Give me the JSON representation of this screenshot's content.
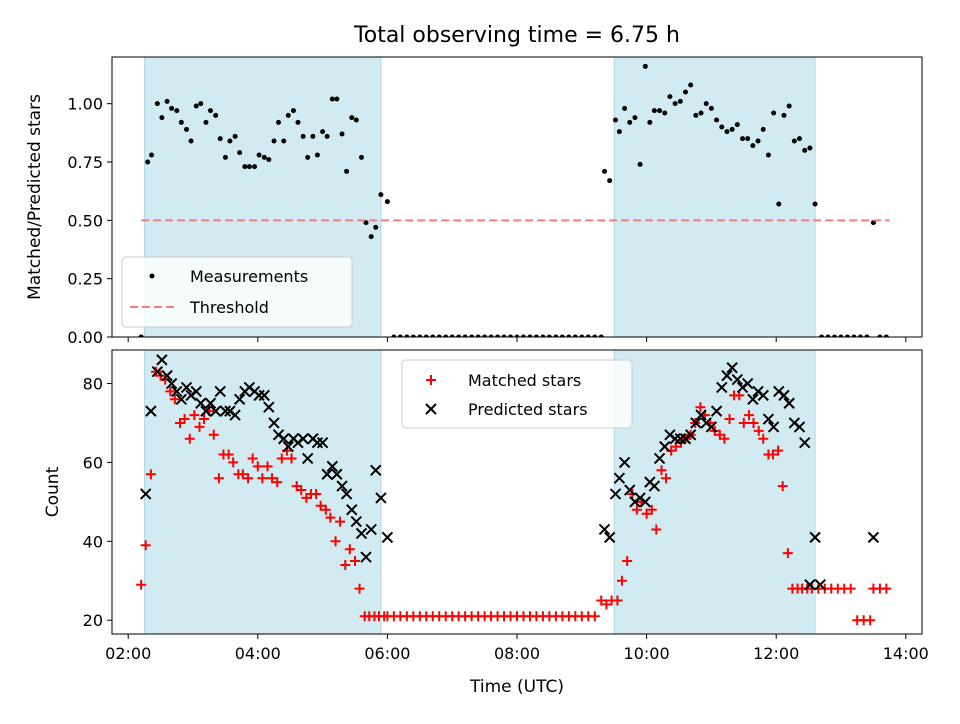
{
  "chart_data": {
    "title": "Total observing time = 6.75 h",
    "x_tick_labels": [
      "02:00",
      "04:00",
      "06:00",
      "08:00",
      "10:00",
      "12:00",
      "14:00"
    ],
    "x_tick_values_h": [
      2,
      4,
      6,
      8,
      10,
      12,
      14
    ],
    "xlabel": "Time (UTC)",
    "xlim_h": [
      1.75,
      14.25
    ],
    "shaded_windows_h": [
      [
        2.25,
        5.9
      ],
      [
        9.5,
        12.6
      ]
    ],
    "shade_color": "#add8e6",
    "panels": [
      {
        "type": "scatter",
        "ylabel": "Matched/Predicted stars",
        "ylim": [
          0,
          1.2
        ],
        "y_ticks": [
          0,
          0.25,
          0.5,
          0.75,
          1.0
        ],
        "y_tick_labels": [
          "0.00",
          "0.25",
          "0.50",
          "0.75",
          "1.00"
        ],
        "legend_position": "lower-left",
        "series": [
          {
            "name": "Measurements",
            "type": "scatter",
            "color": "#000000",
            "x_h": [
              2.3,
              2.36,
              2.45,
              2.52,
              2.6,
              2.67,
              2.75,
              2.82,
              2.9,
              2.97,
              3.05,
              3.12,
              3.2,
              3.27,
              3.35,
              3.42,
              3.5,
              3.57,
              3.65,
              3.72,
              3.8,
              3.87,
              3.95,
              4.02,
              4.1,
              4.17,
              4.25,
              4.32,
              4.4,
              4.47,
              4.55,
              4.62,
              4.7,
              4.77,
              4.85,
              4.92,
              5.0,
              5.07,
              5.15,
              5.22,
              5.3,
              5.37,
              5.45,
              5.52,
              5.6,
              5.67,
              5.75,
              5.82,
              5.9,
              6.0,
              9.35,
              9.43,
              9.52,
              9.58,
              9.66,
              9.74,
              9.82,
              9.9,
              9.98,
              10.05,
              10.12,
              10.2,
              10.28,
              10.36,
              10.44,
              10.52,
              10.6,
              10.68,
              10.76,
              10.84,
              10.92,
              11.0,
              11.08,
              11.16,
              11.24,
              11.32,
              11.4,
              11.48,
              11.56,
              11.64,
              11.72,
              11.8,
              11.88,
              11.96,
              12.04,
              12.12,
              12.2,
              12.28,
              12.36,
              12.44,
              12.52,
              12.6,
              13.5
            ],
            "y": [
              0.75,
              0.78,
              1.0,
              0.94,
              1.01,
              0.98,
              0.97,
              0.92,
              0.89,
              0.84,
              0.99,
              1.0,
              0.92,
              0.97,
              0.95,
              0.85,
              0.77,
              0.84,
              0.86,
              0.79,
              0.73,
              0.73,
              0.73,
              0.78,
              0.77,
              0.76,
              0.84,
              0.92,
              0.84,
              0.95,
              0.97,
              0.92,
              0.86,
              0.77,
              0.86,
              0.78,
              0.88,
              0.86,
              1.02,
              1.02,
              0.87,
              0.71,
              0.94,
              0.93,
              0.77,
              0.49,
              0.43,
              0.47,
              0.61,
              0.58,
              0.71,
              0.67,
              0.93,
              0.88,
              0.98,
              0.92,
              0.94,
              0.74,
              1.16,
              0.92,
              0.97,
              0.97,
              0.96,
              1.03,
              1.0,
              1.01,
              1.05,
              1.08,
              0.95,
              0.96,
              1.0,
              0.98,
              0.93,
              0.9,
              0.88,
              0.89,
              0.91,
              0.85,
              0.85,
              0.82,
              0.84,
              0.89,
              0.78,
              0.96,
              0.57,
              0.95,
              0.99,
              0.84,
              0.85,
              0.8,
              0.81,
              0.57,
              0.49
            ]
          },
          {
            "name": "Measurements",
            "type": "scatter",
            "color": "#000000",
            "x_h": [
              2.2,
              6.1,
              6.2,
              6.3,
              6.4,
              6.5,
              6.6,
              6.7,
              6.8,
              6.9,
              7.0,
              7.1,
              7.2,
              7.3,
              7.4,
              7.5,
              7.6,
              7.7,
              7.8,
              7.9,
              8.0,
              8.1,
              8.2,
              8.3,
              8.4,
              8.5,
              8.6,
              8.7,
              8.8,
              8.9,
              9.0,
              9.1,
              9.2,
              9.3,
              12.7,
              12.8,
              12.9,
              13.0,
              13.1,
              13.2,
              13.3,
              13.4,
              13.6,
              13.7
            ],
            "y": [
              0,
              0,
              0,
              0,
              0,
              0,
              0,
              0,
              0,
              0,
              0,
              0,
              0,
              0,
              0,
              0,
              0,
              0,
              0,
              0,
              0,
              0,
              0,
              0,
              0,
              0,
              0,
              0,
              0,
              0,
              0,
              0,
              0,
              0,
              0,
              0,
              0,
              0,
              0,
              0,
              0,
              0,
              0,
              0
            ]
          },
          {
            "name": "Threshold",
            "type": "line",
            "style": "dashed",
            "color": "#f08080",
            "x_h": [
              2.2,
              13.75
            ],
            "y": [
              0.5,
              0.5
            ]
          }
        ]
      },
      {
        "type": "scatter",
        "ylabel": "Count",
        "ylim": [
          16.5,
          88.5
        ],
        "y_ticks": [
          20,
          40,
          60,
          80
        ],
        "y_tick_labels": [
          "20",
          "40",
          "60",
          "80"
        ],
        "legend_position": "top-center",
        "series": [
          {
            "name": "Matched stars",
            "marker": "+",
            "color": "#ff0000",
            "x_h": [
              2.2,
              2.27,
              2.35,
              2.43,
              2.5,
              2.57,
              2.65,
              2.72,
              2.8,
              2.87,
              2.95,
              3.02,
              3.1,
              3.17,
              3.25,
              3.32,
              3.4,
              3.47,
              3.55,
              3.62,
              3.7,
              3.77,
              3.85,
              3.92,
              4.0,
              4.07,
              4.15,
              4.22,
              4.3,
              4.37,
              4.45,
              4.52,
              4.6,
              4.67,
              4.75,
              4.82,
              4.9,
              4.97,
              5.05,
              5.12,
              5.2,
              5.27,
              5.35,
              5.42,
              5.5,
              5.57,
              5.65,
              5.72,
              5.8,
              5.87,
              5.95,
              6.0,
              6.1,
              6.2,
              6.3,
              6.4,
              6.5,
              6.6,
              6.7,
              6.8,
              6.9,
              7.0,
              7.1,
              7.2,
              7.3,
              7.4,
              7.5,
              7.6,
              7.7,
              7.8,
              7.9,
              8.0,
              8.1,
              8.2,
              8.3,
              8.4,
              8.5,
              8.6,
              8.7,
              8.8,
              8.9,
              9.0,
              9.1,
              9.2,
              9.3,
              9.38,
              9.46,
              9.55,
              9.62,
              9.7,
              9.78,
              9.85,
              9.92,
              10.0,
              10.08,
              10.15,
              10.23,
              10.3,
              10.38,
              10.45,
              10.53,
              10.6,
              10.68,
              10.75,
              10.83,
              10.9,
              10.98,
              11.05,
              11.13,
              11.2,
              11.28,
              11.35,
              11.43,
              11.5,
              11.58,
              11.65,
              11.73,
              11.8,
              11.88,
              11.95,
              12.03,
              12.1,
              12.18,
              12.25,
              12.33,
              12.4,
              12.48,
              12.55,
              12.65,
              12.75,
              12.85,
              12.95,
              13.05,
              13.15,
              13.25,
              13.35,
              13.45,
              13.5,
              13.6,
              13.7
            ],
            "y": [
              29,
              39,
              57,
              83,
              82,
              81,
              78,
              76,
              70,
              71,
              66,
              72,
              69,
              71,
              73,
              67,
              56,
              62,
              62,
              60,
              57,
              57,
              56,
              61,
              59,
              56,
              59,
              56,
              55,
              61,
              63,
              61,
              54,
              53,
              51,
              52,
              52,
              49,
              48,
              46,
              40,
              45,
              34,
              38,
              35,
              28,
              21,
              21,
              21,
              21,
              21,
              21,
              21,
              21,
              21,
              21,
              21,
              21,
              21,
              21,
              21,
              21,
              21,
              21,
              21,
              21,
              21,
              21,
              21,
              21,
              21,
              21,
              21,
              21,
              21,
              21,
              21,
              21,
              21,
              21,
              21,
              21,
              21,
              21,
              25,
              24,
              25,
              25,
              30,
              35,
              52,
              48,
              50,
              47,
              48,
              43,
              58,
              56,
              63,
              64,
              65,
              66,
              67,
              70,
              74,
              72,
              70,
              68,
              67,
              66,
              71,
              77,
              77,
              70,
              72,
              70,
              68,
              66,
              62,
              62,
              63,
              54,
              37,
              28,
              28,
              28,
              28,
              28,
              28,
              28,
              28,
              28,
              28,
              28,
              20,
              20,
              20,
              28,
              28,
              28
            ],
            "note": ""
          },
          {
            "name": "Predicted stars",
            "marker": "x",
            "color": "#000000",
            "x_h": [
              2.27,
              2.35,
              2.45,
              2.52,
              2.6,
              2.67,
              2.75,
              2.82,
              2.9,
              2.97,
              3.05,
              3.12,
              3.2,
              3.27,
              3.35,
              3.42,
              3.5,
              3.57,
              3.65,
              3.72,
              3.8,
              3.87,
              3.95,
              4.02,
              4.1,
              4.17,
              4.25,
              4.32,
              4.4,
              4.47,
              4.55,
              4.62,
              4.7,
              4.77,
              4.85,
              4.92,
              5.0,
              5.07,
              5.15,
              5.22,
              5.3,
              5.37,
              5.45,
              5.52,
              5.6,
              5.67,
              5.75,
              5.82,
              5.9,
              6.0,
              9.35,
              9.43,
              9.52,
              9.58,
              9.66,
              9.74,
              9.82,
              9.9,
              9.98,
              10.05,
              10.12,
              10.2,
              10.28,
              10.36,
              10.44,
              10.52,
              10.6,
              10.68,
              10.76,
              10.84,
              10.92,
              11.0,
              11.08,
              11.16,
              11.24,
              11.32,
              11.4,
              11.48,
              11.56,
              11.64,
              11.72,
              11.8,
              11.88,
              11.96,
              12.04,
              12.12,
              12.2,
              12.28,
              12.36,
              12.44,
              12.52,
              12.6,
              12.68,
              13.5
            ],
            "y": [
              52,
              73,
              83,
              86,
              82,
              80,
              78,
              76,
              79,
              77,
              78,
              75,
              73,
              75,
              73,
              78,
              73,
              73,
              72,
              76,
              78,
              79,
              78,
              77,
              77,
              74,
              70,
              67,
              66,
              64,
              66,
              65,
              66,
              61,
              66,
              65,
              65,
              57,
              59,
              57,
              54,
              52,
              48,
              45,
              42,
              36,
              43,
              58,
              51,
              41,
              43,
              41,
              52,
              56,
              60,
              53,
              50,
              51,
              50,
              55,
              54,
              61,
              64,
              67,
              66,
              66,
              66,
              67,
              70,
              72,
              70,
              69,
              73,
              79,
              82,
              84,
              81,
              79,
              80,
              76,
              78,
              77,
              71,
              69,
              78,
              77,
              75,
              70,
              69,
              65,
              29,
              41,
              29,
              41
            ]
          }
        ]
      }
    ]
  }
}
